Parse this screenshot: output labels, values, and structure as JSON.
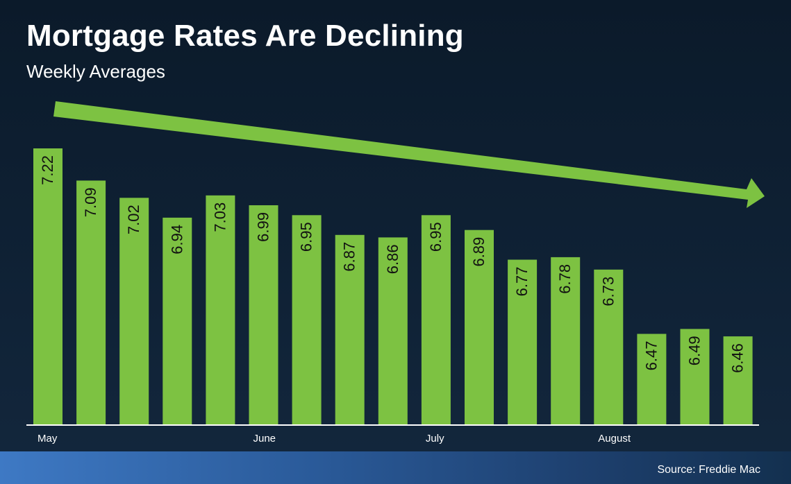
{
  "header": {
    "title": "Mortgage Rates Are Declining",
    "subtitle": "Weekly Averages"
  },
  "footer": {
    "source": "Source: Freddie Mac"
  },
  "colors": {
    "bar": "#7dc242",
    "trend_arrow": "#7dc242",
    "axis": "#ffffff",
    "text": "#ffffff"
  },
  "chart_data": {
    "type": "bar",
    "title": "Mortgage Rates Are Declining",
    "subtitle": "Weekly Averages",
    "values": [
      7.22,
      7.09,
      7.02,
      6.94,
      7.03,
      6.99,
      6.95,
      6.87,
      6.86,
      6.95,
      6.89,
      6.77,
      6.78,
      6.73,
      6.47,
      6.49,
      6.46
    ],
    "month_labels": [
      {
        "label": "May",
        "bar_index": 0
      },
      {
        "label": "June",
        "bar_index": 5
      },
      {
        "label": "July",
        "bar_index": 9
      },
      {
        "label": "August",
        "bar_index": 13
      }
    ],
    "data_labels": "inside-top-rotated",
    "grid": false,
    "legend": "none",
    "trend_arrow": "decreasing"
  }
}
